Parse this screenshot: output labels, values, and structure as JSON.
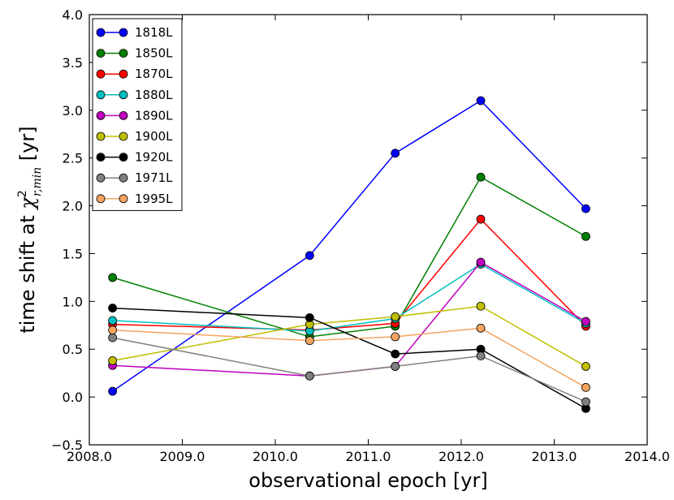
{
  "chart_data": {
    "type": "line",
    "title": "",
    "xlabel": "observational epoch [yr]",
    "ylabel_prefix": "time shift at ",
    "ylabel_symbol": "χ",
    "ylabel_sup": "2",
    "ylabel_sub": "r,min",
    "ylabel_suffix": " [yr]",
    "xlim": [
      2008.0,
      2014.0
    ],
    "ylim": [
      -0.5,
      4.0
    ],
    "xticks": [
      2008.0,
      2009.0,
      2010.0,
      2011.0,
      2012.0,
      2013.0,
      2014.0
    ],
    "xtick_labels": [
      "2008.0",
      "2009.0",
      "2010.0",
      "2011.0",
      "2012.0",
      "2013.0",
      "2014.0"
    ],
    "yticks": [
      -0.5,
      0.0,
      0.5,
      1.0,
      1.5,
      2.0,
      2.5,
      3.0,
      3.5,
      4.0
    ],
    "ytick_labels": [
      "−0.5",
      "0.0",
      "0.5",
      "1.0",
      "1.5",
      "2.0",
      "2.5",
      "3.0",
      "3.5",
      "4.0"
    ],
    "grid": false,
    "legend_position": "top-left",
    "x": [
      2008.25,
      2010.37,
      2011.29,
      2012.21,
      2013.34
    ],
    "series": [
      {
        "name": "1818L",
        "color": "#0000ff",
        "values": [
          0.06,
          1.48,
          2.55,
          3.1,
          1.97
        ]
      },
      {
        "name": "1850L",
        "color": "#008000",
        "values": [
          1.25,
          0.63,
          0.74,
          2.3,
          1.68
        ]
      },
      {
        "name": "1870L",
        "color": "#ff0000",
        "values": [
          0.76,
          0.7,
          0.77,
          1.86,
          0.74
        ]
      },
      {
        "name": "1880L",
        "color": "#00bfbf",
        "values": [
          0.8,
          0.69,
          0.82,
          1.39,
          0.77
        ]
      },
      {
        "name": "1890L",
        "color": "#bf00bf",
        "values": [
          0.33,
          0.22,
          0.32,
          1.41,
          0.79
        ]
      },
      {
        "name": "1900L",
        "color": "#bfbf00",
        "values": [
          0.38,
          0.76,
          0.84,
          0.95,
          0.32
        ]
      },
      {
        "name": "1920L",
        "color": "#000000",
        "values": [
          0.93,
          0.83,
          0.45,
          0.5,
          -0.12
        ]
      },
      {
        "name": "1971L",
        "color": "#808080",
        "values": [
          0.62,
          0.22,
          0.32,
          0.43,
          -0.05
        ]
      },
      {
        "name": "1995L",
        "color": "#f4a460",
        "values": [
          0.7,
          0.59,
          0.63,
          0.72,
          0.1
        ]
      }
    ]
  }
}
